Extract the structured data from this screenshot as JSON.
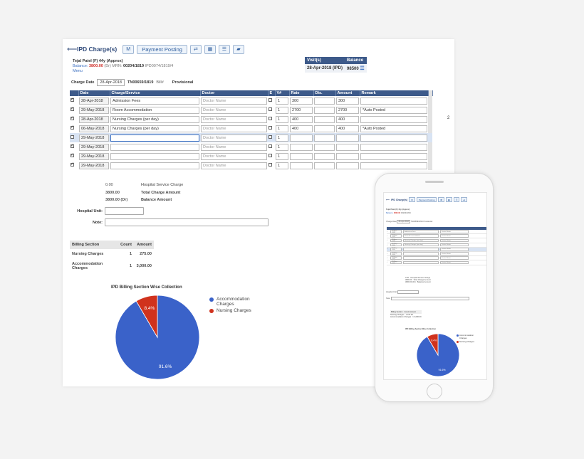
{
  "header": {
    "title": "IPD Charge(s)",
    "payment_posting": "Payment Posting",
    "btn_m": "M"
  },
  "patient": {
    "name": "Tejal Patel (F) 44y (Approx)",
    "balance_label": "Balance:",
    "balance_value": "3800.00",
    "balance_type": "(Dr)",
    "mrn_label": "MRN:",
    "mrn": "00204/1819",
    "ipd_no": "IPD0074/1819/4",
    "menu": "Menu"
  },
  "visit": {
    "col_visit": "Visit(s)",
    "col_balance": "Balance",
    "visit_value": "28-Apr-2018 (IPD)",
    "balance_value": "98500"
  },
  "charge_form": {
    "charge_date_label": "Charge Date",
    "charge_date_value": "28-Apr-2018",
    "tn_no": "TN00659/1819",
    "bill_label": "Bill#",
    "status": "Provisional"
  },
  "grid": {
    "columns": [
      "Date",
      "Charge/Service",
      "Doctor",
      "E",
      "V#",
      "Rate",
      "Dis.",
      "Amount",
      "Remark"
    ],
    "doctor_placeholder": "Doctor Name",
    "rows": [
      {
        "checked": true,
        "date": "28-Apr-2018",
        "service": "Admission Fees",
        "v": "1",
        "rate": "300",
        "dis": "",
        "amount": "300",
        "remark": ""
      },
      {
        "checked": true,
        "date": "29-May-2018",
        "service": "Room Accommodation",
        "v": "1",
        "rate": "2700",
        "dis": "",
        "amount": "2700",
        "remark": "*Auto Posted"
      },
      {
        "checked": true,
        "date": "28-Apr-2018",
        "service": "Nursing Charges (per day)",
        "v": "1",
        "rate": "400",
        "dis": "",
        "amount": "400",
        "remark": ""
      },
      {
        "checked": true,
        "date": "06-May-2018",
        "service": "Nursing Charges (per day)",
        "v": "1",
        "rate": "400",
        "dis": "",
        "amount": "400",
        "remark": "*Auto Posted"
      },
      {
        "checked": false,
        "date": "29-May-2018",
        "service": "",
        "v": "1",
        "rate": "",
        "dis": "",
        "amount": "",
        "remark": "",
        "selected": true
      },
      {
        "checked": true,
        "date": "29-May-2018",
        "service": "",
        "v": "1",
        "rate": "",
        "dis": "",
        "amount": "",
        "remark": ""
      },
      {
        "checked": true,
        "date": "29-May-2018",
        "service": "",
        "v": "1",
        "rate": "",
        "dis": "",
        "amount": "",
        "remark": ""
      },
      {
        "checked": true,
        "date": "29-May-2018",
        "service": "",
        "v": "1",
        "rate": "",
        "dis": "",
        "amount": "",
        "remark": ""
      }
    ],
    "side_number": "2"
  },
  "summary": {
    "service_value": "0.00",
    "service_label": "Hospital Service Charge",
    "total_value": "3800.00",
    "total_label": "Total Charge Amount",
    "balance_value": "3800.00 (Dr)",
    "balance_label": "Balance Amount"
  },
  "form": {
    "hospital_unit_label": "Hospital Unit:",
    "note_label": "Note:"
  },
  "billing_section": {
    "columns": [
      "Billing Section",
      "Count",
      "Amount"
    ],
    "rows": [
      {
        "section": "Nursing Charges",
        "count": "1",
        "amount": "275.00"
      },
      {
        "section": "Accommodation Charges",
        "count": "1",
        "amount": "3,000.00"
      }
    ]
  },
  "chart_data": {
    "type": "pie",
    "title": "IPD Billing Section Wise Collection",
    "categories": [
      "Accommodation Charges",
      "Nursing Charges"
    ],
    "values": [
      91.6,
      8.4
    ],
    "labels": [
      "91.6%",
      "8.4%"
    ],
    "colors": [
      "#3a62c9",
      "#d0321d"
    ],
    "legend": "right"
  }
}
